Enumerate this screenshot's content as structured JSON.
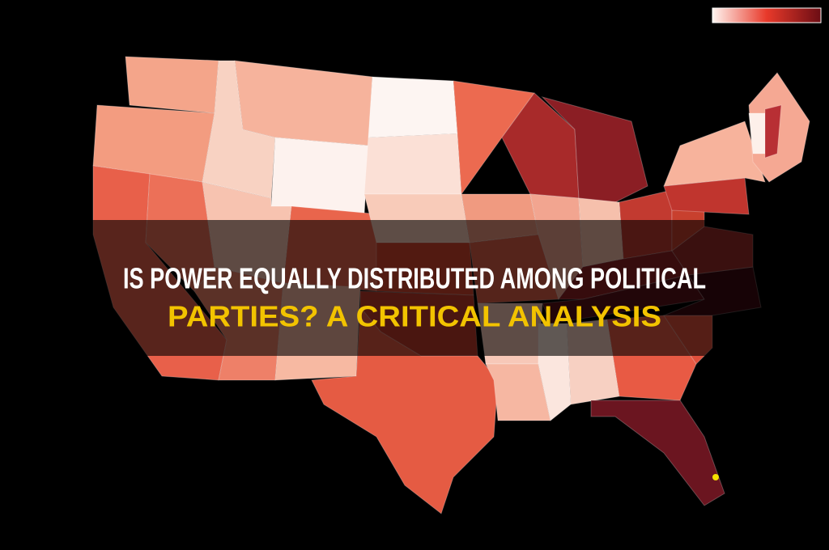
{
  "title": {
    "lines": [
      "IS POWER EQUALLY DISTRIBUTED AMONG POLITICAL",
      "PARTIES? A CRITICAL ANALYSIS"
    ]
  }
}
